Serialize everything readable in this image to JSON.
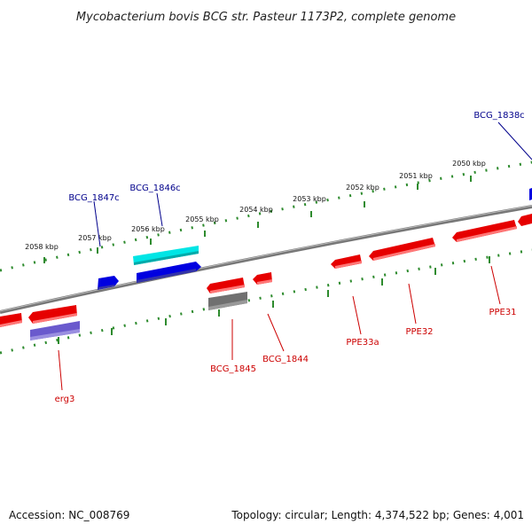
{
  "title": "Mycobacterium bovis BCG str. Pasteur 1173P2, complete genome",
  "footer": {
    "accession": "Accession: NC_008769",
    "summary": "Topology: circular; Length: 4,374,522 bp; Genes: 4,001"
  },
  "colors": {
    "backbone": "#808080",
    "tick": "#2E8B2E",
    "gene_forward_red": "#E60000",
    "gene_blue": "#0000E0",
    "gene_cyan": "#00E5E5",
    "gene_gray": "#707070",
    "gene_purple": "#6A5ACD",
    "label_blue": "#00008B",
    "label_red": "#CC0000"
  },
  "tick_labels": [
    "2058 kbp",
    "2057 kbp",
    "2056 kbp",
    "2055 kbp",
    "2054 kbp",
    "2053 kbp",
    "2052 kbp",
    "2051 kbp",
    "2050 kbp"
  ],
  "gene_labels": {
    "bcg_1847c": "BCG_1847c",
    "bcg_1846c": "BCG_1846c",
    "bcg_1838c": "BCG_1838c",
    "bcg_1845": "BCG_1845",
    "bcg_1844": "BCG_1844",
    "ppe33a": "PPE33a",
    "ppe32": "PPE32",
    "ppe31": "PPE31",
    "erg3": "erg3"
  }
}
